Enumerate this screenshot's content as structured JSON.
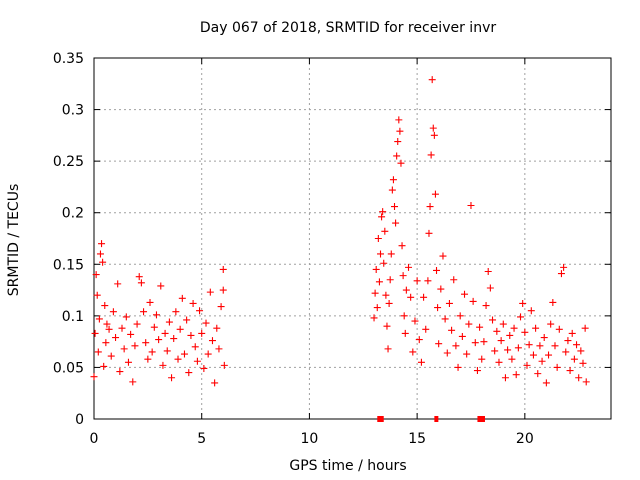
{
  "chart_data": {
    "type": "scatter",
    "title": "Day 067 of 2018, SRMTID for receiver invr",
    "xlabel": "GPS time / hours",
    "ylabel": "SRMTID / TECUs",
    "xlim": [
      0,
      24
    ],
    "ylim": [
      0,
      0.35
    ],
    "xticks": [
      0,
      5,
      10,
      15,
      20
    ],
    "yticks": [
      0,
      0.05,
      0.1,
      0.15,
      0.2,
      0.25,
      0.3,
      0.35
    ],
    "xtick_labels": [
      "0",
      "5",
      "10",
      "15",
      "20"
    ],
    "ytick_labels": [
      "0",
      "0.05",
      "0.1",
      "0.15",
      "0.2",
      "0.25",
      "0.3",
      "0.35"
    ],
    "grid": true,
    "marker": "+",
    "color": "#ff0000",
    "series": [
      {
        "points": [
          [
            0.0,
            0.041
          ],
          [
            0.05,
            0.083
          ],
          [
            0.1,
            0.14
          ],
          [
            0.15,
            0.12
          ],
          [
            0.2,
            0.065
          ],
          [
            0.25,
            0.097
          ],
          [
            0.3,
            0.16
          ],
          [
            0.35,
            0.17
          ],
          [
            0.4,
            0.152
          ],
          [
            0.45,
            0.051
          ],
          [
            0.5,
            0.11
          ],
          [
            0.55,
            0.074
          ],
          [
            0.6,
            0.092
          ],
          [
            0.7,
            0.087
          ],
          [
            0.8,
            0.061
          ],
          [
            0.9,
            0.104
          ],
          [
            1.0,
            0.079
          ],
          [
            1.1,
            0.131
          ],
          [
            1.2,
            0.046
          ],
          [
            1.3,
            0.088
          ],
          [
            1.4,
            0.068
          ],
          [
            1.5,
            0.099
          ],
          [
            1.6,
            0.055
          ],
          [
            1.7,
            0.082
          ],
          [
            1.8,
            0.036
          ],
          [
            1.9,
            0.071
          ],
          [
            2.0,
            0.092
          ],
          [
            2.1,
            0.138
          ],
          [
            2.2,
            0.132
          ],
          [
            2.3,
            0.104
          ],
          [
            2.4,
            0.074
          ],
          [
            2.5,
            0.058
          ],
          [
            2.6,
            0.113
          ],
          [
            2.7,
            0.065
          ],
          [
            2.8,
            0.089
          ],
          [
            2.9,
            0.101
          ],
          [
            3.0,
            0.077
          ],
          [
            3.1,
            0.129
          ],
          [
            3.2,
            0.052
          ],
          [
            3.3,
            0.083
          ],
          [
            3.4,
            0.066
          ],
          [
            3.5,
            0.094
          ],
          [
            3.6,
            0.04
          ],
          [
            3.7,
            0.078
          ],
          [
            3.8,
            0.104
          ],
          [
            3.9,
            0.058
          ],
          [
            4.0,
            0.087
          ],
          [
            4.1,
            0.117
          ],
          [
            4.2,
            0.063
          ],
          [
            4.3,
            0.096
          ],
          [
            4.4,
            0.045
          ],
          [
            4.5,
            0.081
          ],
          [
            4.6,
            0.112
          ],
          [
            4.7,
            0.07
          ],
          [
            4.8,
            0.056
          ],
          [
            4.9,
            0.105
          ],
          [
            5.0,
            0.083
          ],
          [
            5.1,
            0.049
          ],
          [
            5.2,
            0.093
          ],
          [
            5.3,
            0.063
          ],
          [
            5.4,
            0.123
          ],
          [
            5.5,
            0.076
          ],
          [
            5.6,
            0.035
          ],
          [
            5.7,
            0.088
          ],
          [
            5.8,
            0.068
          ],
          [
            5.9,
            0.109
          ],
          [
            6.0,
            0.145
          ],
          [
            6.0,
            0.125
          ],
          [
            6.05,
            0.052
          ]
        ]
      },
      {
        "points": [
          [
            13.0,
            0.098
          ],
          [
            13.05,
            0.122
          ],
          [
            13.1,
            0.145
          ],
          [
            13.15,
            0.108
          ],
          [
            13.2,
            0.175
          ],
          [
            13.25,
            0.133
          ],
          [
            13.3,
            0.16
          ],
          [
            13.35,
            0.196
          ],
          [
            13.4,
            0.201
          ],
          [
            13.45,
            0.151
          ],
          [
            13.5,
            0.182
          ],
          [
            13.55,
            0.12
          ],
          [
            13.6,
            0.09
          ],
          [
            13.65,
            0.068
          ],
          [
            13.7,
            0.112
          ],
          [
            13.75,
            0.135
          ],
          [
            13.8,
            0.16
          ],
          [
            13.85,
            0.222
          ],
          [
            13.9,
            0.232
          ],
          [
            13.95,
            0.206
          ],
          [
            14.0,
            0.19
          ],
          [
            14.05,
            0.255
          ],
          [
            14.1,
            0.269
          ],
          [
            14.15,
            0.29
          ],
          [
            14.2,
            0.279
          ],
          [
            14.25,
            0.248
          ],
          [
            14.3,
            0.168
          ],
          [
            14.35,
            0.139
          ],
          [
            14.4,
            0.1
          ],
          [
            14.45,
            0.083
          ],
          [
            14.5,
            0.125
          ],
          [
            14.6,
            0.147
          ],
          [
            14.7,
            0.118
          ],
          [
            14.8,
            0.065
          ],
          [
            14.9,
            0.095
          ],
          [
            15.0,
            0.134
          ],
          [
            15.1,
            0.077
          ],
          [
            15.2,
            0.055
          ],
          [
            15.3,
            0.118
          ],
          [
            15.4,
            0.087
          ],
          [
            15.5,
            0.134
          ],
          [
            15.55,
            0.18
          ],
          [
            15.6,
            0.206
          ],
          [
            15.65,
            0.256
          ],
          [
            15.7,
            0.329
          ],
          [
            15.75,
            0.282
          ],
          [
            15.8,
            0.275
          ],
          [
            15.85,
            0.218
          ],
          [
            15.9,
            0.144
          ],
          [
            15.95,
            0.108
          ],
          [
            16.0,
            0.073
          ],
          [
            16.1,
            0.126
          ],
          [
            16.2,
            0.158
          ],
          [
            16.3,
            0.097
          ],
          [
            16.4,
            0.064
          ],
          [
            16.5,
            0.112
          ],
          [
            16.6,
            0.086
          ],
          [
            16.7,
            0.135
          ],
          [
            16.8,
            0.071
          ],
          [
            16.9,
            0.05
          ],
          [
            17.0,
            0.1
          ],
          [
            17.1,
            0.08
          ],
          [
            17.2,
            0.121
          ],
          [
            17.3,
            0.063
          ],
          [
            17.4,
            0.092
          ],
          [
            17.5,
            0.207
          ],
          [
            17.6,
            0.114
          ],
          [
            17.7,
            0.074
          ],
          [
            17.8,
            0.047
          ],
          [
            17.9,
            0.089
          ],
          [
            18.0,
            0.058
          ],
          [
            18.1,
            0.075
          ],
          [
            18.2,
            0.11
          ],
          [
            18.3,
            0.143
          ],
          [
            18.4,
            0.127
          ],
          [
            18.5,
            0.096
          ],
          [
            18.6,
            0.066
          ],
          [
            18.7,
            0.085
          ],
          [
            18.8,
            0.055
          ],
          [
            18.9,
            0.076
          ],
          [
            19.0,
            0.092
          ],
          [
            19.1,
            0.04
          ],
          [
            19.2,
            0.067
          ],
          [
            19.3,
            0.081
          ],
          [
            19.4,
            0.058
          ],
          [
            19.5,
            0.088
          ],
          [
            19.6,
            0.043
          ],
          [
            19.7,
            0.069
          ],
          [
            19.8,
            0.099
          ],
          [
            19.9,
            0.112
          ],
          [
            20.0,
            0.084
          ],
          [
            20.1,
            0.052
          ],
          [
            20.2,
            0.072
          ],
          [
            20.3,
            0.105
          ],
          [
            20.4,
            0.062
          ],
          [
            20.5,
            0.088
          ],
          [
            20.6,
            0.044
          ],
          [
            20.7,
            0.071
          ],
          [
            20.8,
            0.056
          ],
          [
            20.9,
            0.079
          ],
          [
            21.0,
            0.035
          ],
          [
            21.1,
            0.062
          ],
          [
            21.2,
            0.092
          ],
          [
            21.3,
            0.113
          ],
          [
            21.4,
            0.071
          ],
          [
            21.5,
            0.05
          ],
          [
            21.6,
            0.087
          ],
          [
            21.7,
            0.141
          ],
          [
            21.8,
            0.147
          ],
          [
            21.9,
            0.065
          ],
          [
            22.0,
            0.076
          ],
          [
            22.1,
            0.047
          ],
          [
            22.2,
            0.083
          ],
          [
            22.3,
            0.058
          ],
          [
            22.4,
            0.072
          ],
          [
            22.5,
            0.04
          ],
          [
            22.6,
            0.066
          ],
          [
            22.7,
            0.054
          ],
          [
            22.8,
            0.088
          ],
          [
            22.85,
            0.036
          ]
        ]
      }
    ],
    "baseline_marks": [
      {
        "x_start": 13.15,
        "x_end": 13.45,
        "y": 0
      },
      {
        "x_start": 15.8,
        "x_end": 15.95,
        "y": 0
      },
      {
        "x_start": 17.8,
        "x_end": 18.15,
        "y": 0
      }
    ]
  }
}
